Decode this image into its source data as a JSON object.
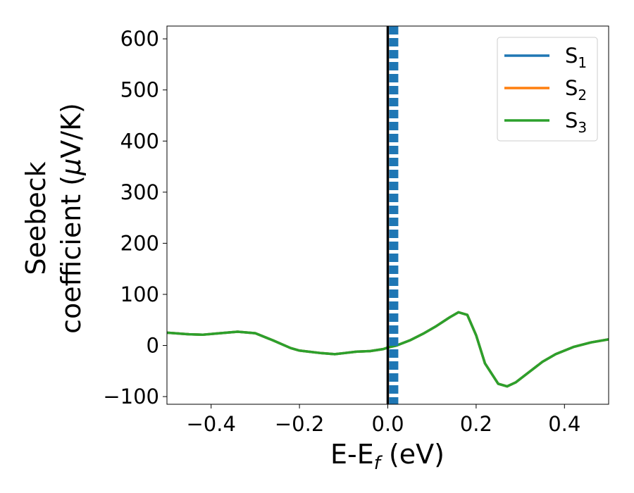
{
  "chart_data": {
    "type": "line",
    "xlabel": {
      "main": "E-E",
      "sub": "f",
      "unit": " (eV)"
    },
    "ylabel": {
      "line1": "Seebeck",
      "line2_pre": "coefficient  (",
      "mu": "μ",
      "line2_post": "V/K)"
    },
    "xlim": [
      -0.5,
      0.5
    ],
    "ylim": [
      -115,
      625
    ],
    "xticks": [
      -0.4,
      -0.2,
      0.0,
      0.2,
      0.4
    ],
    "xtick_labels": [
      "−0.4",
      "−0.2",
      "0.0",
      "0.2",
      "0.4"
    ],
    "yticks": [
      -100,
      0,
      100,
      200,
      300,
      400,
      500,
      600
    ],
    "ytick_labels": [
      "−100",
      "0",
      "100",
      "200",
      "300",
      "400",
      "500",
      "600"
    ],
    "grid": false,
    "legend_position": "top-right",
    "series": [
      {
        "name": "S",
        "sub": "1",
        "color": "#1f77b4",
        "x": [
          -0.5,
          -0.45,
          -0.42,
          -0.38,
          -0.34,
          -0.3,
          -0.26,
          -0.22,
          -0.2,
          -0.18,
          -0.15,
          -0.12,
          -0.1,
          -0.07,
          -0.04,
          -0.01,
          0.0,
          0.02,
          0.05,
          0.08,
          0.11,
          0.14,
          0.16,
          0.18,
          0.2,
          0.22,
          0.25,
          0.27,
          0.29,
          0.32,
          0.35,
          0.38,
          0.42,
          0.46,
          0.5
        ],
        "y": [
          25,
          22,
          21,
          24,
          27,
          24,
          10,
          -5,
          -10,
          -12,
          -15,
          -17,
          -15,
          -12,
          -11,
          -7,
          -4,
          0,
          10,
          23,
          38,
          55,
          65,
          60,
          20,
          -35,
          -75,
          -80,
          -72,
          -52,
          -32,
          -17,
          -3,
          6,
          12
        ]
      },
      {
        "name": "S",
        "sub": "2",
        "color": "#ff7f0e",
        "x": [
          -0.5,
          -0.45,
          -0.42,
          -0.38,
          -0.34,
          -0.3,
          -0.26,
          -0.22,
          -0.2,
          -0.18,
          -0.15,
          -0.12,
          -0.1,
          -0.07,
          -0.04,
          -0.01,
          0.0,
          0.02,
          0.05,
          0.08,
          0.11,
          0.14,
          0.16,
          0.18,
          0.2,
          0.22,
          0.25,
          0.27,
          0.29,
          0.32,
          0.35,
          0.38,
          0.42,
          0.46,
          0.5
        ],
        "y": [
          25,
          22,
          21,
          24,
          27,
          24,
          10,
          -5,
          -10,
          -12,
          -15,
          -17,
          -15,
          -12,
          -11,
          -7,
          -4,
          0,
          10,
          23,
          38,
          55,
          65,
          60,
          20,
          -35,
          -75,
          -80,
          -72,
          -52,
          -32,
          -17,
          -3,
          6,
          12
        ]
      },
      {
        "name": "S",
        "sub": "3",
        "color": "#2ca02c",
        "x": [
          -0.5,
          -0.45,
          -0.42,
          -0.38,
          -0.34,
          -0.3,
          -0.26,
          -0.22,
          -0.2,
          -0.18,
          -0.15,
          -0.12,
          -0.1,
          -0.07,
          -0.04,
          -0.01,
          0.0,
          0.02,
          0.05,
          0.08,
          0.11,
          0.14,
          0.16,
          0.18,
          0.2,
          0.22,
          0.25,
          0.27,
          0.29,
          0.32,
          0.35,
          0.38,
          0.42,
          0.46,
          0.5
        ],
        "y": [
          25,
          22,
          21,
          24,
          27,
          24,
          10,
          -5,
          -10,
          -12,
          -15,
          -17,
          -15,
          -12,
          -11,
          -7,
          -4,
          0,
          10,
          23,
          38,
          55,
          65,
          60,
          20,
          -35,
          -75,
          -80,
          -72,
          -52,
          -32,
          -17,
          -3,
          6,
          12
        ]
      }
    ],
    "vlines": [
      {
        "x": 0.0,
        "color": "#000000",
        "style": "solid"
      },
      {
        "x": 0.006,
        "color": "#1f77b4",
        "style": "dashed"
      },
      {
        "x": 0.011,
        "color": "#1f77b4",
        "style": "dashed"
      },
      {
        "x": 0.016,
        "color": "#1f77b4",
        "style": "dashed"
      },
      {
        "x": 0.021,
        "color": "#1f77b4",
        "style": "dashed"
      }
    ]
  }
}
